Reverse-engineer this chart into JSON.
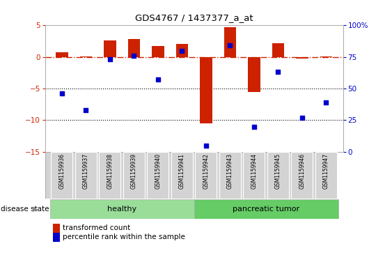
{
  "title": "GDS4767 / 1437377_a_at",
  "samples": [
    "GSM1159936",
    "GSM1159937",
    "GSM1159938",
    "GSM1159939",
    "GSM1159940",
    "GSM1159941",
    "GSM1159942",
    "GSM1159943",
    "GSM1159944",
    "GSM1159945",
    "GSM1159946",
    "GSM1159947"
  ],
  "transformed_count": [
    0.7,
    0.1,
    2.6,
    2.8,
    1.7,
    2.1,
    -10.5,
    4.7,
    -5.5,
    2.2,
    -0.3,
    0.1
  ],
  "percentile_rank": [
    46,
    33,
    73,
    76,
    57,
    80,
    5,
    84,
    20,
    63,
    27,
    39
  ],
  "bar_color": "#cc2200",
  "dot_color": "#0000cc",
  "dashed_line_color": "#cc2200",
  "grid_color": "#000000",
  "healthy_count": 6,
  "healthy_label": "healthy",
  "tumor_label": "pancreatic tumor",
  "healthy_color": "#99dd99",
  "tumor_color": "#66cc66",
  "disease_state_label": "disease state",
  "legend_bar_label": "transformed count",
  "legend_dot_label": "percentile rank within the sample",
  "ylim_left": [
    -15,
    5
  ],
  "ylim_right": [
    0,
    100
  ],
  "yticks_left": [
    5,
    0,
    -5,
    -10,
    -15
  ],
  "yticks_right": [
    100,
    75,
    50,
    25,
    0
  ],
  "background_color": "#ffffff",
  "plot_bg": "#ffffff",
  "label_bg": "#d3d3d3"
}
